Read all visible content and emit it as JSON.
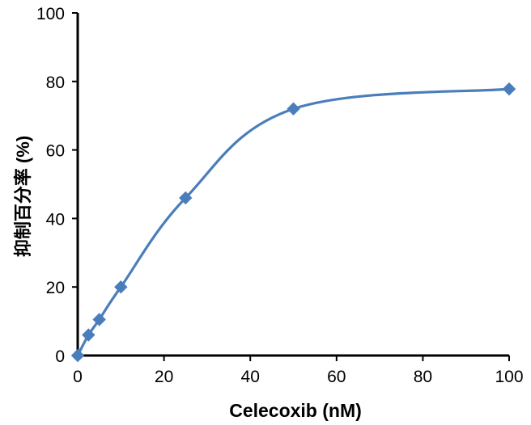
{
  "chart_data": {
    "type": "line",
    "title": "",
    "xlabel": "Celecoxib (nM)",
    "ylabel": "抑制百分率 (%)",
    "xlim": [
      0,
      100
    ],
    "ylim": [
      0,
      100
    ],
    "xticks": [
      "0",
      "20",
      "40",
      "60",
      "80",
      "100"
    ],
    "yticks": [
      "0",
      "20",
      "40",
      "60",
      "80",
      "100"
    ],
    "grid": false,
    "legend": "none",
    "series": [
      {
        "color": "#4a7ebb",
        "marker": "diamond",
        "smooth": true,
        "x": [
          0,
          2.5,
          5,
          10,
          25,
          50,
          100
        ],
        "y": [
          0,
          6,
          10.5,
          20,
          46,
          72,
          77.8
        ]
      }
    ]
  }
}
